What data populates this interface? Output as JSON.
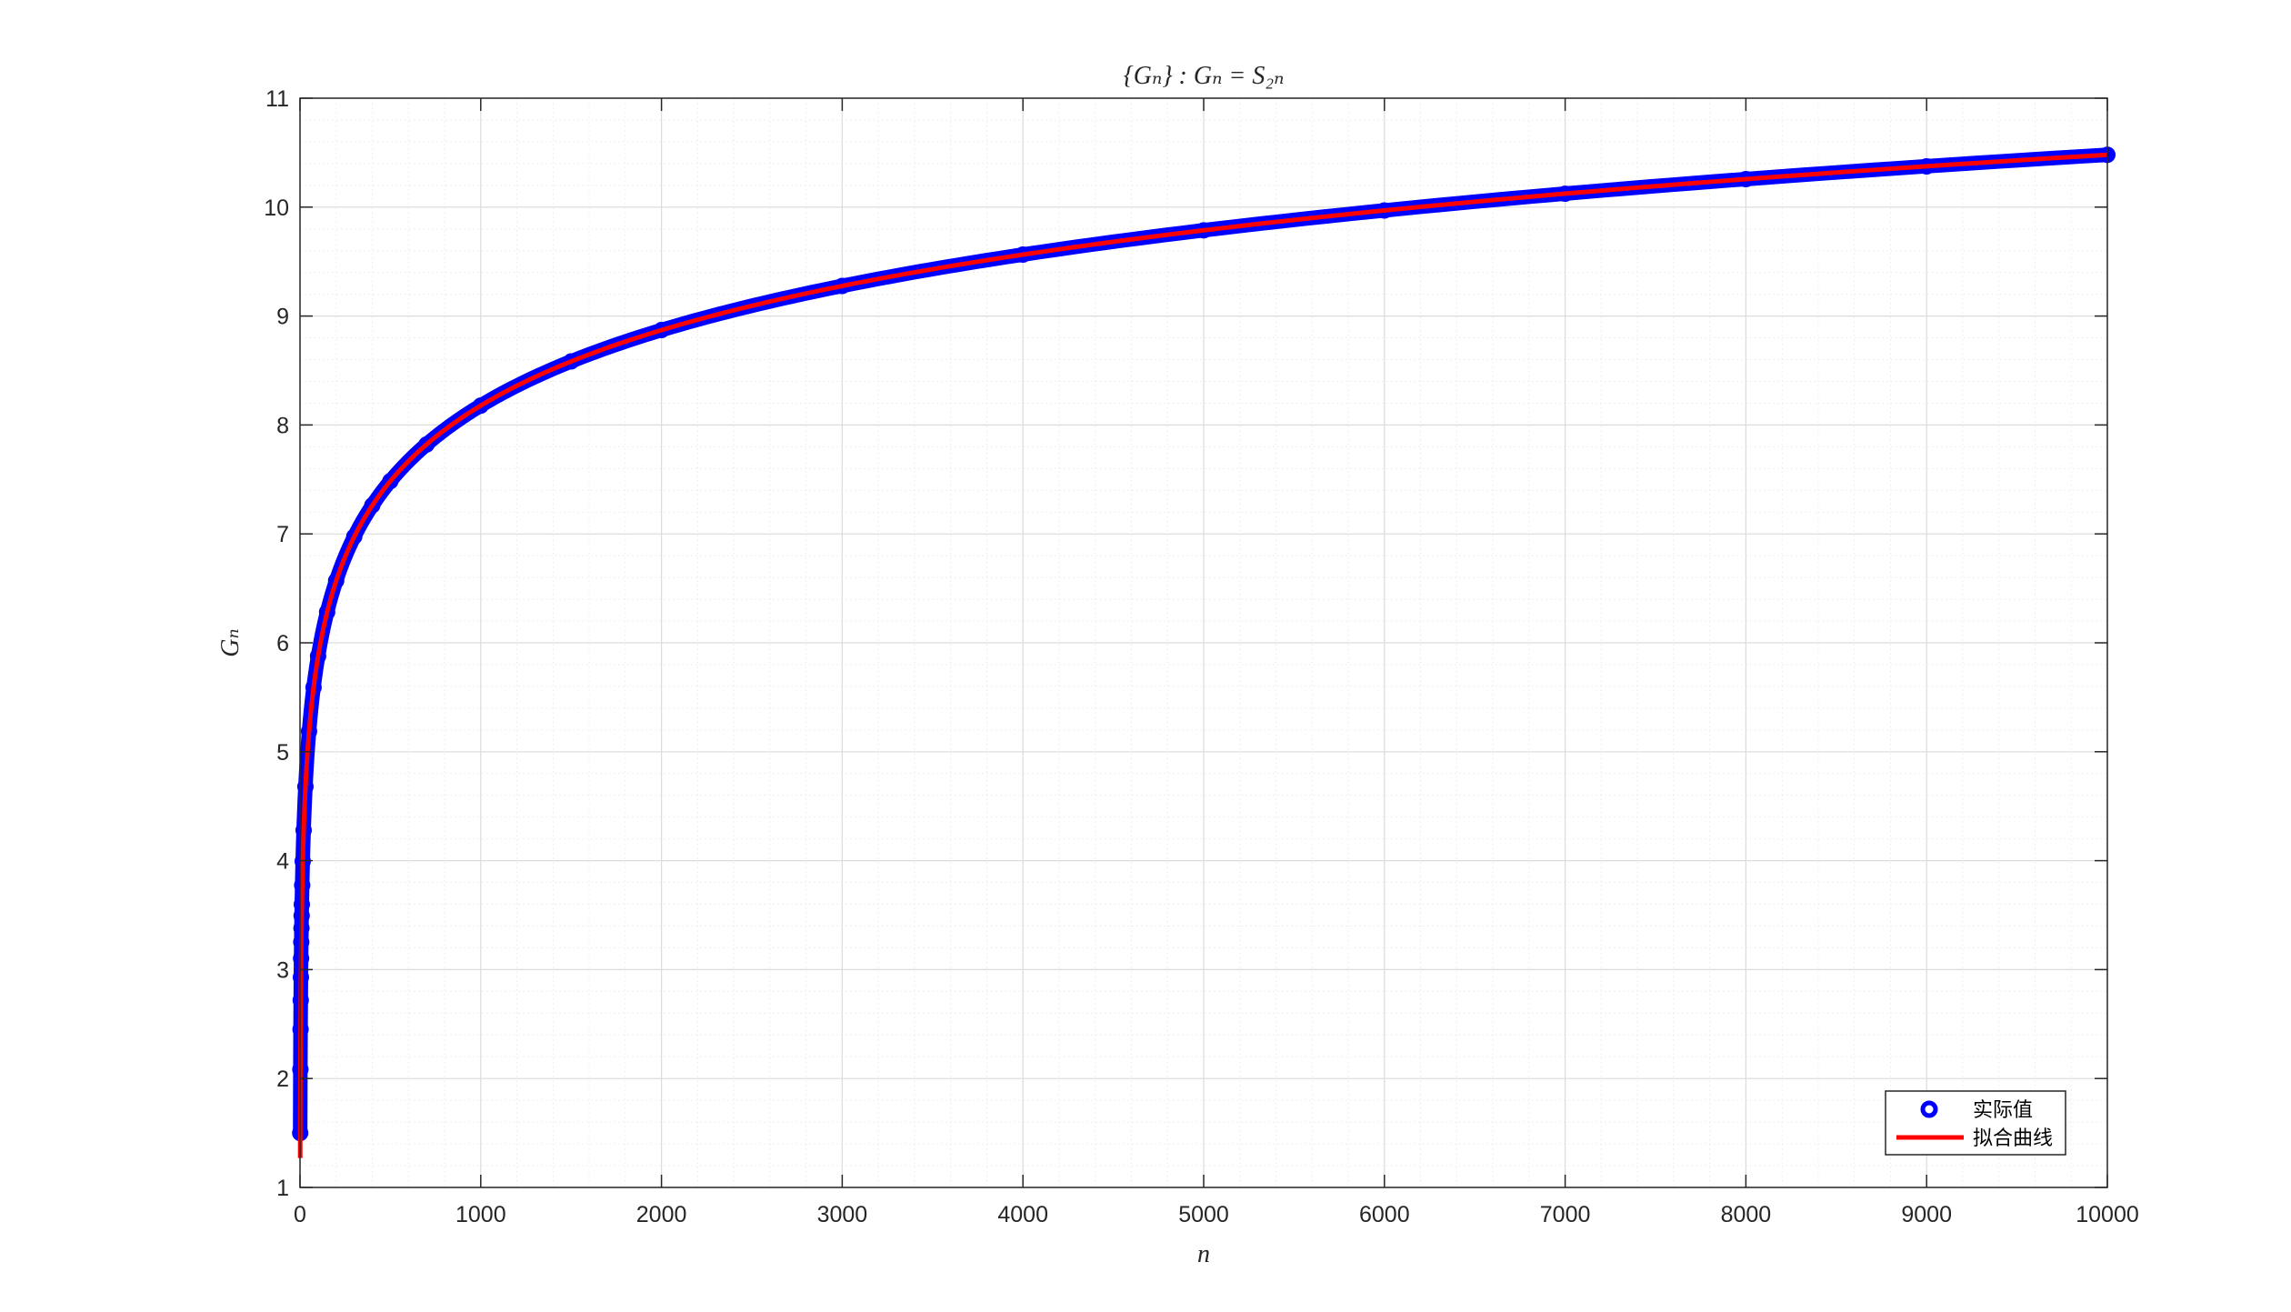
{
  "chart_data": {
    "type": "line",
    "title": "{Gₙ} : Gₙ = S₂ₙ",
    "xlabel": "n",
    "ylabel": "Gₙ",
    "xlim": [
      0,
      10000
    ],
    "ylim": [
      1,
      11
    ],
    "x_ticks": [
      "0",
      "1000",
      "2000",
      "3000",
      "4000",
      "5000",
      "6000",
      "7000",
      "8000",
      "9000",
      "10000"
    ],
    "y_ticks": [
      "1",
      "2",
      "3",
      "4",
      "5",
      "6",
      "7",
      "8",
      "9",
      "10",
      "11"
    ],
    "grid": true,
    "minor_grid": true,
    "legend_position": "bottom-right",
    "series": [
      {
        "name": "实际值",
        "style": "markers",
        "marker": "circle",
        "color": "#0000ff",
        "x": [
          1,
          2,
          3,
          4,
          5,
          6,
          7,
          8,
          9,
          10,
          12,
          15,
          20,
          30,
          50,
          75,
          100,
          150,
          200,
          300,
          400,
          500,
          700,
          1000,
          1500,
          2000,
          3000,
          4000,
          5000,
          6000,
          7000,
          8000,
          9000,
          10000
        ],
        "y": [
          1.5,
          2.083,
          2.45,
          2.718,
          2.929,
          3.103,
          3.252,
          3.381,
          3.495,
          3.598,
          3.775,
          3.995,
          4.279,
          4.68,
          5.187,
          5.591,
          5.878,
          6.282,
          6.57,
          6.975,
          7.262,
          7.485,
          7.821,
          8.178,
          8.583,
          8.871,
          9.276,
          9.564,
          9.787,
          9.969,
          10.123,
          10.257,
          10.374,
          10.48
        ]
      },
      {
        "name": "拟合曲线",
        "style": "line",
        "color": "#ff0000",
        "x": [
          1,
          2,
          3,
          4,
          5,
          6,
          7,
          8,
          9,
          10,
          12,
          15,
          20,
          30,
          50,
          75,
          100,
          150,
          200,
          300,
          400,
          500,
          700,
          1000,
          1500,
          2000,
          3000,
          4000,
          5000,
          6000,
          7000,
          8000,
          9000,
          10000
        ],
        "y": [
          1.27,
          1.963,
          2.369,
          2.656,
          2.879,
          3.062,
          3.216,
          3.35,
          3.467,
          3.573,
          3.755,
          3.978,
          4.265,
          4.671,
          5.182,
          5.587,
          5.875,
          6.28,
          6.568,
          6.973,
          7.261,
          7.484,
          7.82,
          8.177,
          8.582,
          8.87,
          9.276,
          9.563,
          9.786,
          9.969,
          10.123,
          10.256,
          10.374,
          10.479
        ]
      }
    ],
    "legend": [
      {
        "label": "实际值",
        "symbol": "circle-marker"
      },
      {
        "label": "拟合曲线",
        "symbol": "line"
      }
    ],
    "colors": {
      "marker": "#0000ff",
      "fit": "#ff0000",
      "axes": "#262626",
      "grid_major": "#dcdcdc",
      "grid_minor": "#efefef"
    }
  }
}
